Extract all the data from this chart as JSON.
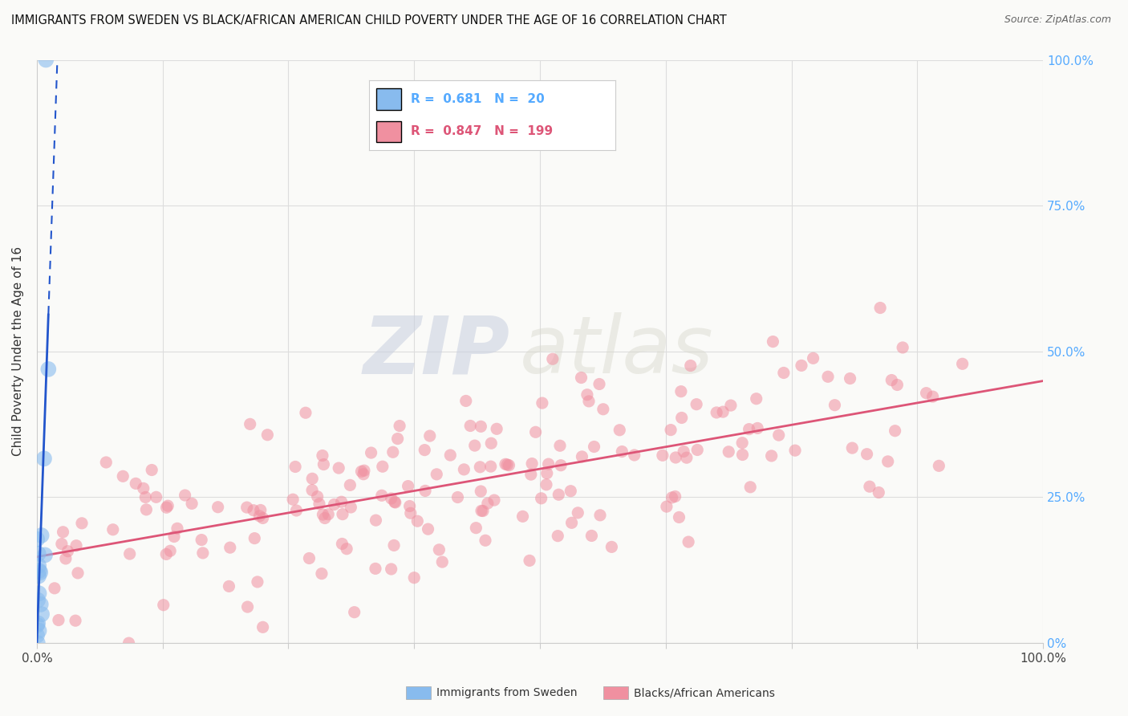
{
  "title": "IMMIGRANTS FROM SWEDEN VS BLACK/AFRICAN AMERICAN CHILD POVERTY UNDER THE AGE OF 16 CORRELATION CHART",
  "source": "Source: ZipAtlas.com",
  "ylabel": "Child Poverty Under the Age of 16",
  "watermark_zip": "ZIP",
  "watermark_atlas": "atlas",
  "legend_blue_label": "Immigrants from Sweden",
  "legend_pink_label": "Blacks/African Americans",
  "blue_R": 0.681,
  "blue_N": 20,
  "pink_R": 0.847,
  "pink_N": 199,
  "blue_color": "#88bbee",
  "pink_color": "#f090a0",
  "blue_line_color": "#2255cc",
  "pink_line_color": "#dd5577",
  "right_axis_color": "#55aaff",
  "xlim": [
    0,
    1
  ],
  "ylim": [
    0,
    1
  ],
  "xticks": [
    0.0,
    0.125,
    0.25,
    0.375,
    0.5,
    0.625,
    0.75,
    0.875,
    1.0
  ],
  "ytick_positions": [
    0,
    0.25,
    0.5,
    0.75,
    1.0
  ],
  "ytick_labels_right": [
    "0%",
    "25.0%",
    "50.0%",
    "75.0%",
    "100.0%"
  ],
  "background_color": "#fafaf8",
  "grid_color": "#dddddd"
}
